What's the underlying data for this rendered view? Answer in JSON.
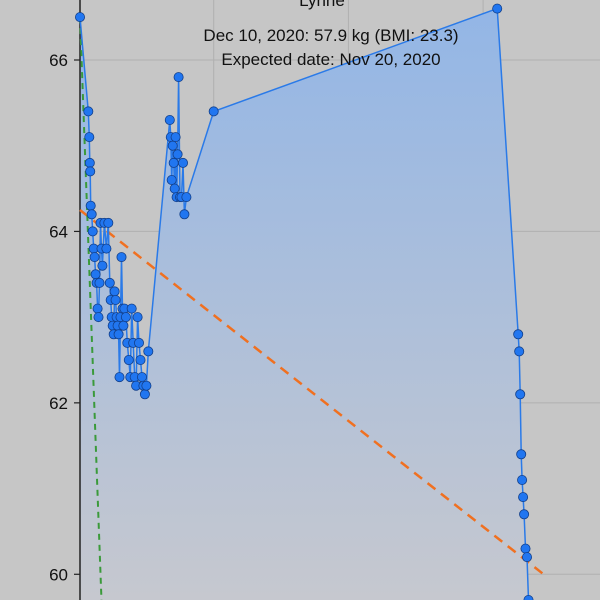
{
  "chart_data": {
    "type": "line",
    "title": "Lynne",
    "subtitle_lines": [
      "Dec 10, 2020: 57.9 kg (BMI: 23.3)",
      "Expected date: Nov 20, 2020"
    ],
    "xlabel": "",
    "ylabel": "",
    "y_ticks": [
      60,
      62,
      64,
      66
    ],
    "y_tick_labels": [
      "60",
      "62",
      "64",
      "66"
    ],
    "ylim": [
      59.7,
      66.7
    ],
    "xlim": [
      0,
      100
    ],
    "grid": true,
    "legend": "none",
    "colors": {
      "background": "#c6c6c6",
      "weight_line": "#2a7ae8",
      "weight_marker_fill": "#2176f0",
      "weight_marker_edge": "#123f8a",
      "fill_top": "#93b6e6",
      "fill_bottom": "#c6c8cf",
      "trend_line": "#f07020",
      "target_line": "#3a9a3a",
      "grid": "#b0b0b0",
      "axis": "#222222"
    },
    "series": [
      {
        "kind": "weight",
        "style": "line-with-markers-and-area",
        "x": [
          0,
          1.7,
          1.9,
          2.0,
          2.1,
          2.2,
          2.4,
          2.6,
          2.8,
          3.0,
          3.2,
          3.4,
          3.6,
          3.8,
          4.0,
          4.2,
          4.4,
          4.6,
          5.0,
          5.4,
          5.8,
          6.1,
          6.3,
          6.5,
          6.7,
          6.9,
          7.1,
          7.3,
          7.5,
          7.7,
          7.9,
          8.1,
          8.3,
          8.5,
          8.7,
          8.9,
          9.1,
          9.4,
          9.7,
          10.0,
          10.3,
          10.6,
          10.9,
          11.2,
          11.5,
          11.8,
          12.1,
          12.4,
          12.7,
          13.0,
          13.3,
          13.6,
          14.0,
          18.4,
          18.6,
          18.8,
          19.0,
          19.2,
          19.4,
          19.6,
          19.8,
          20.0,
          20.2,
          20.5,
          20.8,
          21.1,
          21.4,
          21.8,
          27.4,
          85.5,
          89.8,
          90.0,
          90.2,
          90.4,
          90.6,
          90.8,
          91.0,
          91.3,
          91.6,
          91.9
        ],
        "y": [
          66.5,
          65.4,
          65.1,
          64.8,
          64.7,
          64.3,
          64.2,
          64.0,
          63.8,
          63.7,
          63.5,
          63.4,
          63.1,
          63.0,
          63.4,
          64.1,
          63.8,
          63.6,
          64.1,
          63.8,
          64.1,
          63.4,
          63.2,
          63.0,
          62.9,
          62.8,
          63.3,
          63.2,
          63.0,
          62.9,
          62.8,
          62.3,
          63.0,
          63.7,
          63.1,
          62.9,
          63.1,
          63.0,
          62.7,
          62.5,
          62.3,
          63.1,
          62.7,
          62.3,
          62.2,
          63.0,
          62.7,
          62.5,
          62.3,
          62.2,
          62.1,
          62.2,
          62.6,
          65.3,
          65.1,
          64.6,
          65.0,
          64.8,
          64.5,
          65.1,
          64.4,
          64.9,
          65.8,
          64.4,
          64.4,
          64.8,
          64.2,
          64.4,
          65.4,
          66.6,
          62.8,
          62.6,
          62.1,
          61.4,
          61.1,
          60.9,
          60.7,
          60.3,
          60.2,
          59.7
        ]
      },
      {
        "kind": "trend",
        "style": "dashed",
        "x": [
          0,
          95
        ],
        "y": [
          64.25,
          60.0
        ]
      },
      {
        "kind": "target",
        "style": "dashed",
        "x": [
          0,
          4.4
        ],
        "y": [
          66.5,
          59.7
        ]
      }
    ]
  }
}
